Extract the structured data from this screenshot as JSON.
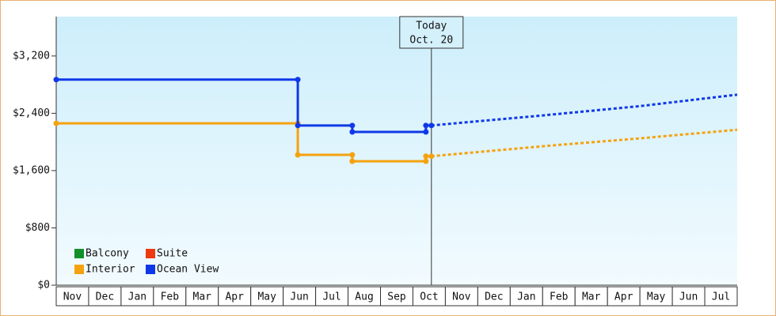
{
  "chart_data": {
    "type": "step-line",
    "categories": [
      "Nov",
      "Dec",
      "Jan",
      "Feb",
      "Mar",
      "Apr",
      "May",
      "Jun",
      "Jul",
      "Aug",
      "Sep",
      "Oct",
      "Nov",
      "Dec",
      "Jan",
      "Feb",
      "Mar",
      "Apr",
      "May",
      "Jun",
      "Jul"
    ],
    "xlim": [
      0,
      21
    ],
    "ylim": [
      0,
      3750
    ],
    "yticks": [
      {
        "value": 0,
        "label": "$0"
      },
      {
        "value": 800,
        "label": "$800"
      },
      {
        "value": 1600,
        "label": "$1,600"
      },
      {
        "value": 2400,
        "label": "$2,400"
      },
      {
        "value": 3200,
        "label": "$3,200"
      }
    ],
    "today": {
      "x": 11.57,
      "label": "Today",
      "date": "Oct. 20"
    },
    "legend": "bottom-left",
    "series": [
      {
        "name": "Balcony",
        "color": "#11902a",
        "x": [],
        "values": [],
        "forecast": {
          "x": [],
          "values": []
        }
      },
      {
        "name": "Suite",
        "color": "#ee3a10",
        "x": [],
        "values": [],
        "forecast": {
          "x": [],
          "values": []
        }
      },
      {
        "name": "Interior",
        "color": "#f5a20f",
        "x": [
          0,
          7.45,
          7.45,
          9.13,
          9.13,
          11.4,
          11.4,
          11.57
        ],
        "values": [
          2260,
          2260,
          1820,
          1820,
          1730,
          1730,
          1800,
          1800
        ],
        "forecast": {
          "x": [
            11.57,
            15,
            18,
            21
          ],
          "values": [
            1800,
            1940,
            2050,
            2170
          ]
        }
      },
      {
        "name": "Ocean View",
        "color": "#1038e8",
        "x": [
          0,
          7.45,
          7.45,
          9.13,
          9.13,
          11.4,
          11.4,
          11.57
        ],
        "values": [
          2870,
          2870,
          2230,
          2230,
          2140,
          2140,
          2230,
          2230
        ],
        "forecast": {
          "x": [
            11.57,
            15,
            18,
            21
          ],
          "values": [
            2230,
            2370,
            2500,
            2660
          ]
        }
      }
    ]
  }
}
